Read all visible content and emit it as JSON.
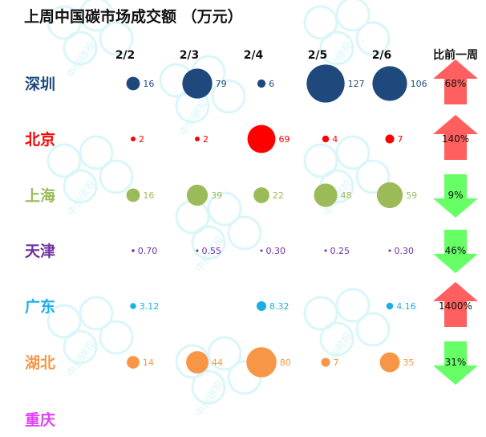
{
  "chart_data": {
    "type": "bubble-table",
    "title": "上周中国碳市场成交额 （万元）",
    "dates": [
      "2/2",
      "2/3",
      "2/4",
      "2/5",
      "2/6"
    ],
    "change_header": "比前一周",
    "rows": [
      {
        "city": "深圳",
        "color": "#1F497D",
        "values": [
          16,
          79,
          6,
          127,
          106
        ],
        "labels": [
          "16",
          "79",
          "6",
          "127",
          "106"
        ],
        "change": "68%",
        "direction": "up"
      },
      {
        "city": "北京",
        "color": "#FF0000",
        "values": [
          2,
          2,
          69,
          4,
          7
        ],
        "labels": [
          "2",
          "2",
          "69",
          "4",
          "7"
        ],
        "change": "140%",
        "direction": "up"
      },
      {
        "city": "上海",
        "color": "#9BBB59",
        "values": [
          16,
          39,
          22,
          48,
          59
        ],
        "labels": [
          "16",
          "39",
          "22",
          "48",
          "59"
        ],
        "change": "9%",
        "direction": "down"
      },
      {
        "city": "天津",
        "color": "#7030A0",
        "values": [
          0.7,
          0.55,
          0.3,
          0.25,
          0.3
        ],
        "labels": [
          "0.70",
          "0.55",
          "0.30",
          "0.25",
          "0.30"
        ],
        "change": "46%",
        "direction": "down"
      },
      {
        "city": "广东",
        "color": "#1AAFE6",
        "values": [
          3.12,
          null,
          8.32,
          null,
          4.16
        ],
        "labels": [
          "3.12",
          null,
          "8.32",
          null,
          "4.16"
        ],
        "change": "1400%",
        "direction": "up"
      },
      {
        "city": "湖北",
        "color": "#F79646",
        "values": [
          14,
          44,
          80,
          7,
          35
        ],
        "labels": [
          "14",
          "44",
          "80",
          "7",
          "35"
        ],
        "change": "31%",
        "direction": "down"
      },
      {
        "city": "重庆",
        "color": "#E040FB",
        "values": [
          null,
          null,
          null,
          null,
          null
        ],
        "labels": [
          null,
          null,
          null,
          null,
          null
        ],
        "change": null,
        "direction": null
      }
    ],
    "arrow_colors": {
      "up": "#FF5F5F",
      "down": "#66FF66"
    },
    "watermark_text": "中创碳投",
    "watermark_color": "#BDEFF7"
  }
}
